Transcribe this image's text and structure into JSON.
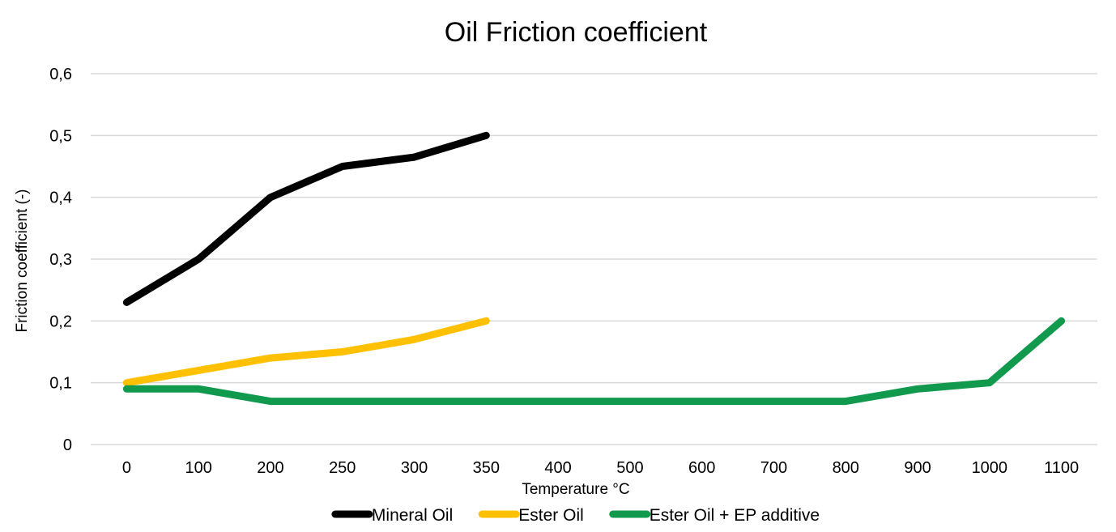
{
  "chart_data": {
    "type": "line",
    "title": "Oil Friction coefficient",
    "xlabel": "Temperature °C",
    "ylabel": "Friction coefficient (-)",
    "categories": [
      "0",
      "100",
      "200",
      "250",
      "300",
      "350",
      "400",
      "500",
      "600",
      "700",
      "800",
      "900",
      "1000",
      "1100"
    ],
    "y_ticks": [
      "0",
      "0,1",
      "0,2",
      "0,3",
      "0,4",
      "0,5",
      "0,6"
    ],
    "ylim": [
      0,
      0.6
    ],
    "grid": true,
    "legend_position": "bottom",
    "series": [
      {
        "name": "Mineral Oil",
        "color": "#000000",
        "values": [
          0.23,
          0.3,
          0.4,
          0.45,
          0.465,
          0.5,
          null,
          null,
          null,
          null,
          null,
          null,
          null,
          null
        ]
      },
      {
        "name": "Ester Oil",
        "color": "#FFC000",
        "values": [
          0.1,
          0.12,
          0.14,
          0.15,
          0.17,
          0.2,
          null,
          null,
          null,
          null,
          null,
          null,
          null,
          null
        ]
      },
      {
        "name": "Ester Oil + EP additive",
        "color": "#119A4E",
        "values": [
          0.09,
          0.09,
          0.07,
          0.07,
          0.07,
          0.07,
          0.07,
          0.07,
          0.07,
          0.07,
          0.07,
          0.09,
          0.1,
          0.2
        ]
      }
    ]
  }
}
